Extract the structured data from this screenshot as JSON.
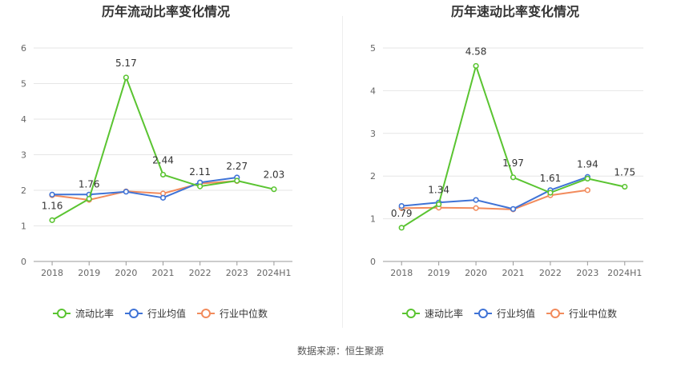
{
  "source_text": "数据来源：恒生聚源",
  "chart_data": [
    {
      "type": "line",
      "title": "历年流动比率变化情况",
      "categories": [
        "2018",
        "2019",
        "2020",
        "2021",
        "2022",
        "2023",
        "2024H1"
      ],
      "ylim": [
        0,
        6
      ],
      "yticks": [
        0,
        1,
        2,
        3,
        4,
        5,
        6
      ],
      "grid": true,
      "legend_position": "bottom",
      "series": [
        {
          "name": "流动比率",
          "color": "#5ac431",
          "labeled": true,
          "values": [
            1.16,
            1.76,
            5.17,
            2.44,
            2.11,
            2.27,
            2.03
          ],
          "labels": [
            "1.16",
            "1.76",
            "5.17",
            "2.44",
            "2.11",
            "2.27",
            "2.03"
          ]
        },
        {
          "name": "行业均值",
          "color": "#3f73d6",
          "labeled": false,
          "values": [
            1.88,
            1.88,
            1.96,
            1.79,
            2.22,
            2.36,
            null
          ]
        },
        {
          "name": "行业中位数",
          "color": "#f28b5c",
          "labeled": false,
          "values": [
            1.86,
            1.73,
            1.97,
            1.91,
            2.19,
            2.26,
            null
          ]
        }
      ]
    },
    {
      "type": "line",
      "title": "历年速动比率变化情况",
      "categories": [
        "2018",
        "2019",
        "2020",
        "2021",
        "2022",
        "2023",
        "2024H1"
      ],
      "ylim": [
        0,
        5
      ],
      "yticks": [
        0,
        1,
        2,
        3,
        4,
        5
      ],
      "grid": true,
      "legend_position": "bottom",
      "series": [
        {
          "name": "速动比率",
          "color": "#5ac431",
          "labeled": true,
          "values": [
            0.79,
            1.34,
            4.58,
            1.97,
            1.61,
            1.94,
            1.75
          ],
          "labels": [
            "0.79",
            "1.34",
            "4.58",
            "1.97",
            "1.61",
            "1.94",
            "1.75"
          ]
        },
        {
          "name": "行业均值",
          "color": "#3f73d6",
          "labeled": false,
          "values": [
            1.3,
            1.38,
            1.44,
            1.23,
            1.67,
            1.98,
            null
          ]
        },
        {
          "name": "行业中位数",
          "color": "#f28b5c",
          "labeled": false,
          "values": [
            1.25,
            1.26,
            1.25,
            1.22,
            1.55,
            1.67,
            null
          ]
        }
      ]
    }
  ]
}
